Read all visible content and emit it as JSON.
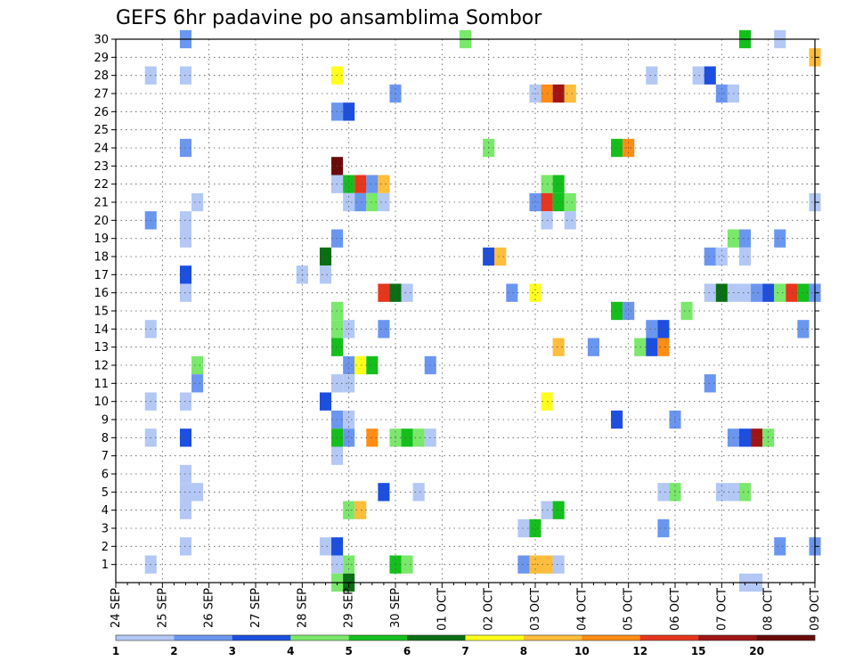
{
  "chart_data": {
    "type": "heatmap",
    "title": "GEFS 6hr padavine po ansamblima Sombor",
    "xlabel": "",
    "ylabel": "",
    "x_tick_labels": [
      "24 SEP",
      "25 SEP",
      "26 SEP",
      "27 SEP",
      "28 SEP",
      "29 SEP",
      "30 SEP",
      "01 OCT",
      "02 OCT",
      "03 OCT",
      "04 OCT",
      "05 OCT",
      "06 OCT",
      "07 OCT",
      "08 OCT",
      "09 OCT"
    ],
    "x_unit": "6h steps from 24 SEP 00Z",
    "xlim": [
      0,
      60
    ],
    "y_tick_labels": [
      "1",
      "2",
      "3",
      "4",
      "5",
      "6",
      "7",
      "8",
      "9",
      "10",
      "11",
      "12",
      "13",
      "14",
      "15",
      "16",
      "17",
      "18",
      "19",
      "20",
      "21",
      "22",
      "23",
      "24",
      "25",
      "26",
      "27",
      "28",
      "29",
      "30"
    ],
    "ylim": [
      0,
      30
    ],
    "grid": true,
    "legend": "colorbar-bottom",
    "colorbar": {
      "labels": [
        "1",
        "2",
        "3",
        "4",
        "5",
        "6",
        "7",
        "8",
        "10",
        "12",
        "15",
        "20"
      ],
      "colors": [
        "#b3c8f5",
        "#6b96f0",
        "#1c4ee0",
        "#7ae86a",
        "#14bf1c",
        "#0a6e14",
        "#ffff1c",
        "#ffbd3c",
        "#ff8c14",
        "#e6361c",
        "#a01414",
        "#6a0a0a"
      ]
    },
    "cells": [
      [
        6,
        30,
        1
      ],
      [
        30,
        30,
        3
      ],
      [
        54,
        30,
        4
      ],
      [
        57,
        30,
        0
      ],
      [
        60,
        29,
        7
      ],
      [
        3,
        28,
        0
      ],
      [
        6,
        28,
        0
      ],
      [
        19,
        28,
        6
      ],
      [
        46,
        28,
        0
      ],
      [
        50,
        28,
        0
      ],
      [
        51,
        28,
        2
      ],
      [
        24,
        27,
        1
      ],
      [
        36,
        27,
        0
      ],
      [
        37,
        27,
        8
      ],
      [
        38,
        27,
        10
      ],
      [
        39,
        27,
        7
      ],
      [
        52,
        27,
        1
      ],
      [
        53,
        27,
        0
      ],
      [
        19,
        26,
        1
      ],
      [
        20,
        26,
        2
      ],
      [
        6,
        24,
        1
      ],
      [
        32,
        24,
        3
      ],
      [
        43,
        24,
        4
      ],
      [
        44,
        24,
        8
      ],
      [
        19,
        23,
        11
      ],
      [
        19,
        22,
        0
      ],
      [
        20,
        22,
        4
      ],
      [
        21,
        22,
        9
      ],
      [
        22,
        22,
        1
      ],
      [
        23,
        22,
        7
      ],
      [
        37,
        22,
        3
      ],
      [
        38,
        22,
        4
      ],
      [
        7,
        21,
        0
      ],
      [
        20,
        21,
        0
      ],
      [
        21,
        21,
        1
      ],
      [
        22,
        21,
        3
      ],
      [
        23,
        21,
        0
      ],
      [
        36,
        21,
        1
      ],
      [
        37,
        21,
        9
      ],
      [
        38,
        21,
        4
      ],
      [
        39,
        21,
        3
      ],
      [
        60,
        21,
        0
      ],
      [
        3,
        20,
        1
      ],
      [
        6,
        20,
        0
      ],
      [
        37,
        20,
        0
      ],
      [
        39,
        20,
        0
      ],
      [
        6,
        19,
        0
      ],
      [
        19,
        19,
        1
      ],
      [
        53,
        19,
        3
      ],
      [
        54,
        19,
        1
      ],
      [
        57,
        19,
        1
      ],
      [
        18,
        18,
        5
      ],
      [
        32,
        18,
        2
      ],
      [
        33,
        18,
        7
      ],
      [
        51,
        18,
        1
      ],
      [
        52,
        18,
        0
      ],
      [
        54,
        18,
        0
      ],
      [
        6,
        17,
        2
      ],
      [
        16,
        17,
        0
      ],
      [
        18,
        17,
        0
      ],
      [
        6,
        16,
        0
      ],
      [
        23,
        16,
        9
      ],
      [
        24,
        16,
        5
      ],
      [
        25,
        16,
        0
      ],
      [
        34,
        16,
        1
      ],
      [
        36,
        16,
        6
      ],
      [
        51,
        16,
        0
      ],
      [
        52,
        16,
        5
      ],
      [
        53,
        16,
        0
      ],
      [
        54,
        16,
        0
      ],
      [
        55,
        16,
        1
      ],
      [
        56,
        16,
        2
      ],
      [
        57,
        16,
        3
      ],
      [
        58,
        16,
        9
      ],
      [
        59,
        16,
        4
      ],
      [
        60,
        16,
        1
      ],
      [
        19,
        15,
        3
      ],
      [
        43,
        15,
        4
      ],
      [
        44,
        15,
        1
      ],
      [
        49,
        15,
        3
      ],
      [
        3,
        14,
        0
      ],
      [
        19,
        14,
        3
      ],
      [
        20,
        14,
        0
      ],
      [
        23,
        14,
        1
      ],
      [
        46,
        14,
        1
      ],
      [
        47,
        14,
        2
      ],
      [
        59,
        14,
        1
      ],
      [
        19,
        13,
        4
      ],
      [
        38,
        13,
        7
      ],
      [
        41,
        13,
        1
      ],
      [
        45,
        13,
        3
      ],
      [
        46,
        13,
        2
      ],
      [
        47,
        13,
        8
      ],
      [
        7,
        12,
        3
      ],
      [
        20,
        12,
        1
      ],
      [
        21,
        12,
        6
      ],
      [
        22,
        12,
        4
      ],
      [
        27,
        12,
        1
      ],
      [
        7,
        11,
        1
      ],
      [
        19,
        11,
        0
      ],
      [
        20,
        11,
        0
      ],
      [
        51,
        11,
        1
      ],
      [
        3,
        10,
        0
      ],
      [
        6,
        10,
        0
      ],
      [
        18,
        10,
        2
      ],
      [
        37,
        10,
        6
      ],
      [
        19,
        9,
        1
      ],
      [
        20,
        9,
        0
      ],
      [
        43,
        9,
        2
      ],
      [
        48,
        9,
        1
      ],
      [
        3,
        8,
        0
      ],
      [
        6,
        8,
        2
      ],
      [
        19,
        8,
        4
      ],
      [
        20,
        8,
        1
      ],
      [
        22,
        8,
        8
      ],
      [
        24,
        8,
        3
      ],
      [
        25,
        8,
        4
      ],
      [
        26,
        8,
        3
      ],
      [
        27,
        8,
        0
      ],
      [
        53,
        8,
        1
      ],
      [
        54,
        8,
        2
      ],
      [
        55,
        8,
        10
      ],
      [
        56,
        8,
        3
      ],
      [
        19,
        7,
        0
      ],
      [
        6,
        6,
        0
      ],
      [
        6,
        5,
        0
      ],
      [
        7,
        5,
        0
      ],
      [
        23,
        5,
        2
      ],
      [
        26,
        5,
        0
      ],
      [
        47,
        5,
        0
      ],
      [
        48,
        5,
        3
      ],
      [
        52,
        5,
        0
      ],
      [
        53,
        5,
        0
      ],
      [
        54,
        5,
        3
      ],
      [
        6,
        4,
        0
      ],
      [
        20,
        4,
        3
      ],
      [
        21,
        4,
        7
      ],
      [
        37,
        4,
        0
      ],
      [
        38,
        4,
        4
      ],
      [
        35,
        3,
        0
      ],
      [
        36,
        3,
        4
      ],
      [
        47,
        3,
        1
      ],
      [
        6,
        2,
        0
      ],
      [
        18,
        2,
        0
      ],
      [
        19,
        2,
        2
      ],
      [
        57,
        2,
        1
      ],
      [
        60,
        2,
        1
      ],
      [
        3,
        1,
        0
      ],
      [
        19,
        1,
        0
      ],
      [
        20,
        1,
        3
      ],
      [
        24,
        1,
        4
      ],
      [
        25,
        1,
        3
      ],
      [
        35,
        1,
        1
      ],
      [
        36,
        1,
        7
      ],
      [
        37,
        1,
        7
      ],
      [
        38,
        1,
        0
      ],
      [
        19,
        0,
        3
      ],
      [
        20,
        0,
        5
      ],
      [
        54,
        0,
        0
      ],
      [
        55,
        0,
        0
      ]
    ]
  }
}
